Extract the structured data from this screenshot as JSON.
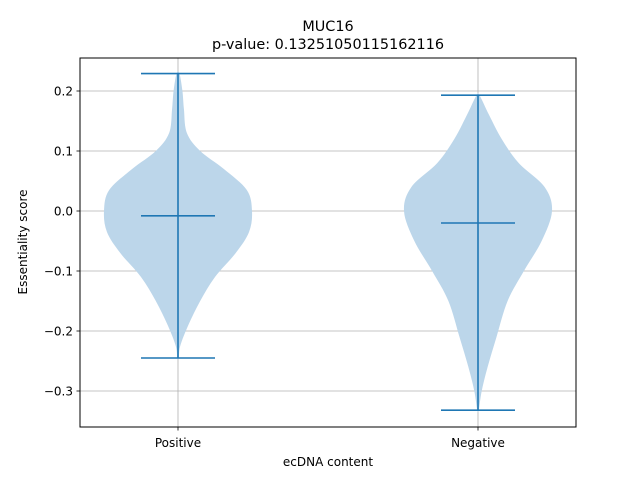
{
  "chart_data": {
    "type": "violin",
    "title": "MUC16",
    "subtitle": "p-value: 0.13251050115162116",
    "xlabel": "ecDNA content",
    "ylabel": "Essentiality score",
    "categories": [
      "Positive",
      "Negative"
    ],
    "ylim": [
      -0.36,
      0.255
    ],
    "yticks": [
      -0.3,
      -0.2,
      -0.1,
      0.0,
      0.1,
      0.2
    ],
    "ytick_labels": [
      "−0.3",
      "−0.2",
      "−0.1",
      "0.0",
      "0.1",
      "0.2"
    ],
    "grid": true,
    "colors": {
      "body": "#bcd6ea",
      "lines": "#1f77b4"
    },
    "violins": [
      {
        "category": "Positive",
        "min": -0.245,
        "max": 0.229,
        "median": -0.008,
        "density_profile": [
          [
            -0.245,
            0.01
          ],
          [
            -0.225,
            0.03
          ],
          [
            -0.19,
            0.14
          ],
          [
            -0.15,
            0.3
          ],
          [
            -0.11,
            0.5
          ],
          [
            -0.07,
            0.78
          ],
          [
            -0.035,
            0.96
          ],
          [
            0.0,
            1.0
          ],
          [
            0.035,
            0.93
          ],
          [
            0.07,
            0.62
          ],
          [
            0.1,
            0.3
          ],
          [
            0.13,
            0.12
          ],
          [
            0.17,
            0.08
          ],
          [
            0.2,
            0.06
          ],
          [
            0.229,
            0.02
          ]
        ]
      },
      {
        "category": "Negative",
        "min": -0.332,
        "max": 0.193,
        "median": -0.02,
        "density_profile": [
          [
            -0.332,
            0.01
          ],
          [
            -0.3,
            0.05
          ],
          [
            -0.26,
            0.13
          ],
          [
            -0.21,
            0.25
          ],
          [
            -0.15,
            0.4
          ],
          [
            -0.1,
            0.62
          ],
          [
            -0.05,
            0.86
          ],
          [
            0.0,
            1.0
          ],
          [
            0.04,
            0.9
          ],
          [
            0.08,
            0.55
          ],
          [
            0.12,
            0.32
          ],
          [
            0.16,
            0.15
          ],
          [
            0.193,
            0.02
          ]
        ]
      }
    ]
  }
}
